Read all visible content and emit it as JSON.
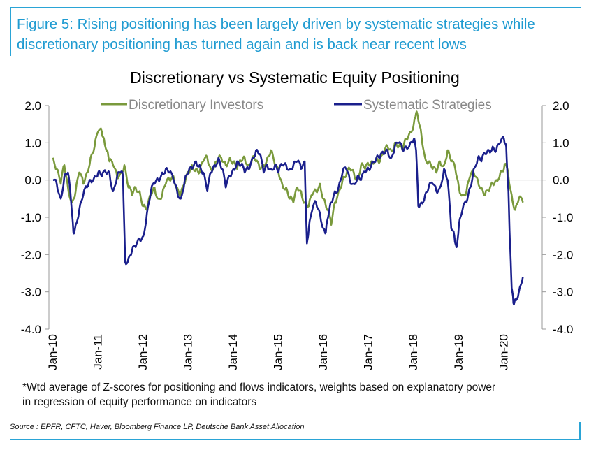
{
  "figure": {
    "title": "Figure 5: Rising positioning has been largely driven by systematic strategies while discretionary positioning has turned again and is back near recent lows"
  },
  "chart_data": {
    "type": "line",
    "title": "Discretionary  vs Systematic Equity Positioning",
    "xlabel": "",
    "ylabel": "",
    "ylim": [
      -4.0,
      2.0
    ],
    "y_ticks": [
      "2.0",
      "1.0",
      "0.0",
      "-1.0",
      "-2.0",
      "-3.0",
      "-4.0"
    ],
    "right_axis_ticks": [
      "2.0",
      "1.0",
      "0.0",
      "-1.0",
      "-2.0",
      "-3.0",
      "-4.0"
    ],
    "x_tick_labels": [
      "Jan-10",
      "Jan-11",
      "Jan-12",
      "Jan-13",
      "Jan-14",
      "Jan-15",
      "Jan-16",
      "Jan-17",
      "Jan-18",
      "Jan-19",
      "Jan-20"
    ],
    "x_range": [
      2010.0,
      2020.6
    ],
    "legend_position": "top",
    "series": [
      {
        "name": "Discretionary Investors",
        "color": "#7a9a3c",
        "x": [
          2010.0,
          2010.08,
          2010.17,
          2010.25,
          2010.33,
          2010.42,
          2010.5,
          2010.58,
          2010.67,
          2010.75,
          2010.83,
          2010.92,
          2011.0,
          2011.08,
          2011.13,
          2011.2,
          2011.25,
          2011.33,
          2011.42,
          2011.5,
          2011.58,
          2011.67,
          2011.75,
          2011.83,
          2011.92,
          2012.0,
          2012.08,
          2012.17,
          2012.25,
          2012.33,
          2012.42,
          2012.5,
          2012.58,
          2012.67,
          2012.75,
          2012.83,
          2012.92,
          2013.0,
          2013.08,
          2013.17,
          2013.25,
          2013.33,
          2013.42,
          2013.5,
          2013.58,
          2013.67,
          2013.75,
          2013.83,
          2013.92,
          2014.0,
          2014.08,
          2014.17,
          2014.25,
          2014.33,
          2014.42,
          2014.5,
          2014.58,
          2014.67,
          2014.75,
          2014.83,
          2014.92,
          2015.0,
          2015.08,
          2015.17,
          2015.25,
          2015.33,
          2015.42,
          2015.5,
          2015.58,
          2015.67,
          2015.75,
          2015.83,
          2015.92,
          2016.0,
          2016.08,
          2016.17,
          2016.25,
          2016.33,
          2016.42,
          2016.5,
          2016.58,
          2016.67,
          2016.75,
          2016.83,
          2016.92,
          2017.0,
          2017.08,
          2017.17,
          2017.25,
          2017.33,
          2017.42,
          2017.5,
          2017.58,
          2017.67,
          2017.75,
          2017.83,
          2017.92,
          2018.0,
          2018.05,
          2018.1,
          2018.17,
          2018.25,
          2018.33,
          2018.42,
          2018.5,
          2018.58,
          2018.67,
          2018.75,
          2018.83,
          2018.92,
          2019.0,
          2019.08,
          2019.17,
          2019.25,
          2019.33,
          2019.42,
          2019.5,
          2019.58,
          2019.67,
          2019.75,
          2019.83,
          2019.92,
          2020.0,
          2020.05,
          2020.1,
          2020.17,
          2020.25,
          2020.33,
          2020.42
        ],
        "values": [
          0.6,
          0.3,
          -0.1,
          0.4,
          -0.2,
          -0.6,
          -0.3,
          0.2,
          -0.1,
          0.2,
          0.6,
          0.9,
          1.3,
          1.3,
          1.1,
          0.8,
          0.5,
          0.4,
          0.1,
          0.2,
          0.4,
          -0.2,
          -0.4,
          -0.2,
          -0.3,
          -0.7,
          -0.8,
          -0.4,
          -0.2,
          -0.5,
          -0.4,
          -0.1,
          0.0,
          0.1,
          -0.2,
          -0.4,
          -0.1,
          0.2,
          0.4,
          0.3,
          0.2,
          0.5,
          0.6,
          0.3,
          0.4,
          0.6,
          0.5,
          0.4,
          0.6,
          0.5,
          0.3,
          0.5,
          0.6,
          0.4,
          0.6,
          0.5,
          0.3,
          0.4,
          0.6,
          0.8,
          0.4,
          0.2,
          -0.1,
          -0.2,
          -0.5,
          -0.6,
          -0.2,
          -0.3,
          -0.6,
          -0.7,
          -0.4,
          -0.3,
          -0.1,
          -0.5,
          -0.8,
          -1.2,
          -0.6,
          -0.3,
          0.0,
          0.1,
          0.3,
          0.2,
          0.0,
          0.4,
          0.3,
          0.4,
          0.5,
          0.6,
          0.5,
          0.7,
          0.9,
          0.8,
          1.0,
          0.9,
          0.8,
          1.1,
          1.3,
          1.5,
          1.8,
          1.6,
          1.2,
          0.6,
          0.5,
          0.3,
          0.2,
          0.5,
          0.4,
          0.8,
          0.5,
          0.3,
          -0.2,
          -0.4,
          -0.3,
          0.1,
          0.2,
          0.0,
          -0.2,
          -0.4,
          -0.3,
          -0.1,
          0.0,
          0.2,
          0.3,
          0.4,
          0.1,
          -0.4,
          -0.8,
          -0.5,
          -0.6
        ]
      },
      {
        "name": "Systematic Strategies",
        "color": "#1a1f8c",
        "x": [
          2010.0,
          2010.08,
          2010.17,
          2010.25,
          2010.33,
          2010.4,
          2010.45,
          2010.5,
          2010.58,
          2010.67,
          2010.75,
          2010.83,
          2010.92,
          2011.0,
          2011.08,
          2011.17,
          2011.25,
          2011.33,
          2011.42,
          2011.5,
          2011.55,
          2011.6,
          2011.67,
          2011.75,
          2011.83,
          2011.92,
          2012.0,
          2012.08,
          2012.17,
          2012.25,
          2012.33,
          2012.42,
          2012.5,
          2012.58,
          2012.67,
          2012.75,
          2012.83,
          2012.92,
          2013.0,
          2013.08,
          2013.17,
          2013.25,
          2013.33,
          2013.42,
          2013.5,
          2013.58,
          2013.67,
          2013.75,
          2013.83,
          2013.92,
          2014.0,
          2014.08,
          2014.17,
          2014.25,
          2014.33,
          2014.42,
          2014.5,
          2014.58,
          2014.67,
          2014.75,
          2014.83,
          2014.92,
          2015.0,
          2015.08,
          2015.17,
          2015.25,
          2015.33,
          2015.42,
          2015.5,
          2015.58,
          2015.63,
          2015.67,
          2015.75,
          2015.83,
          2015.92,
          2016.0,
          2016.05,
          2016.1,
          2016.17,
          2016.25,
          2016.33,
          2016.42,
          2016.5,
          2016.58,
          2016.67,
          2016.75,
          2016.83,
          2016.92,
          2017.0,
          2017.08,
          2017.17,
          2017.25,
          2017.33,
          2017.42,
          2017.5,
          2017.58,
          2017.67,
          2017.75,
          2017.83,
          2017.92,
          2018.0,
          2018.05,
          2018.1,
          2018.17,
          2018.25,
          2018.33,
          2018.42,
          2018.5,
          2018.58,
          2018.67,
          2018.75,
          2018.83,
          2018.9,
          2018.95,
          2019.0,
          2019.08,
          2019.17,
          2019.25,
          2019.33,
          2019.42,
          2019.5,
          2019.58,
          2019.67,
          2019.75,
          2019.83,
          2019.92,
          2020.0,
          2020.05,
          2020.1,
          2020.13,
          2020.17,
          2020.21,
          2020.25,
          2020.33,
          2020.42
        ],
        "values": [
          0.0,
          -0.1,
          -0.5,
          0.1,
          0.2,
          -0.6,
          -1.4,
          -1.2,
          -0.8,
          -0.4,
          -0.2,
          0.0,
          0.1,
          0.2,
          0.1,
          0.2,
          0.2,
          -0.3,
          0.1,
          0.2,
          0.1,
          -2.2,
          -2.1,
          -1.9,
          -1.8,
          -1.6,
          -1.5,
          -0.9,
          -0.3,
          -0.1,
          0.0,
          0.2,
          0.3,
          0.2,
          0.0,
          -0.3,
          -0.5,
          0.0,
          0.2,
          0.3,
          0.5,
          0.4,
          0.2,
          -0.3,
          0.2,
          0.4,
          0.6,
          0.3,
          -0.2,
          0.1,
          0.3,
          0.5,
          0.4,
          0.2,
          0.3,
          0.6,
          0.8,
          0.7,
          0.2,
          0.4,
          0.3,
          0.4,
          0.2,
          0.4,
          0.4,
          0.3,
          0.4,
          0.5,
          0.3,
          0.5,
          -1.7,
          -1.3,
          -0.8,
          -0.6,
          -0.9,
          -1.3,
          -1.4,
          -1.0,
          -0.6,
          -0.3,
          -0.2,
          0.2,
          0.3,
          0.0,
          -0.1,
          0.1,
          0.0,
          0.2,
          0.3,
          0.5,
          0.6,
          0.6,
          0.7,
          0.8,
          0.6,
          0.9,
          1.0,
          0.8,
          0.9,
          1.0,
          1.1,
          0.8,
          -0.7,
          -0.6,
          -0.4,
          -0.2,
          -0.1,
          -0.3,
          -0.2,
          0.3,
          0.0,
          -1.3,
          -1.5,
          -1.8,
          -1.2,
          -0.8,
          -0.6,
          -0.2,
          0.3,
          0.6,
          0.5,
          0.7,
          0.8,
          0.9,
          0.8,
          1.0,
          1.1,
          0.9,
          -0.3,
          -1.6,
          -2.9,
          -3.3,
          -3.2,
          -3.0,
          -2.6
        ]
      }
    ]
  },
  "footnote": {
    "line1": "*Wtd average of Z-scores for positioning and flows indicators, weights based on explanatory power",
    "line2": "in regression of equity performance on indicators"
  },
  "source": {
    "text": "Source : EPFR, CFTC, Haver, Bloomberg Finance LP, Deutsche Bank Asset Allocation"
  }
}
